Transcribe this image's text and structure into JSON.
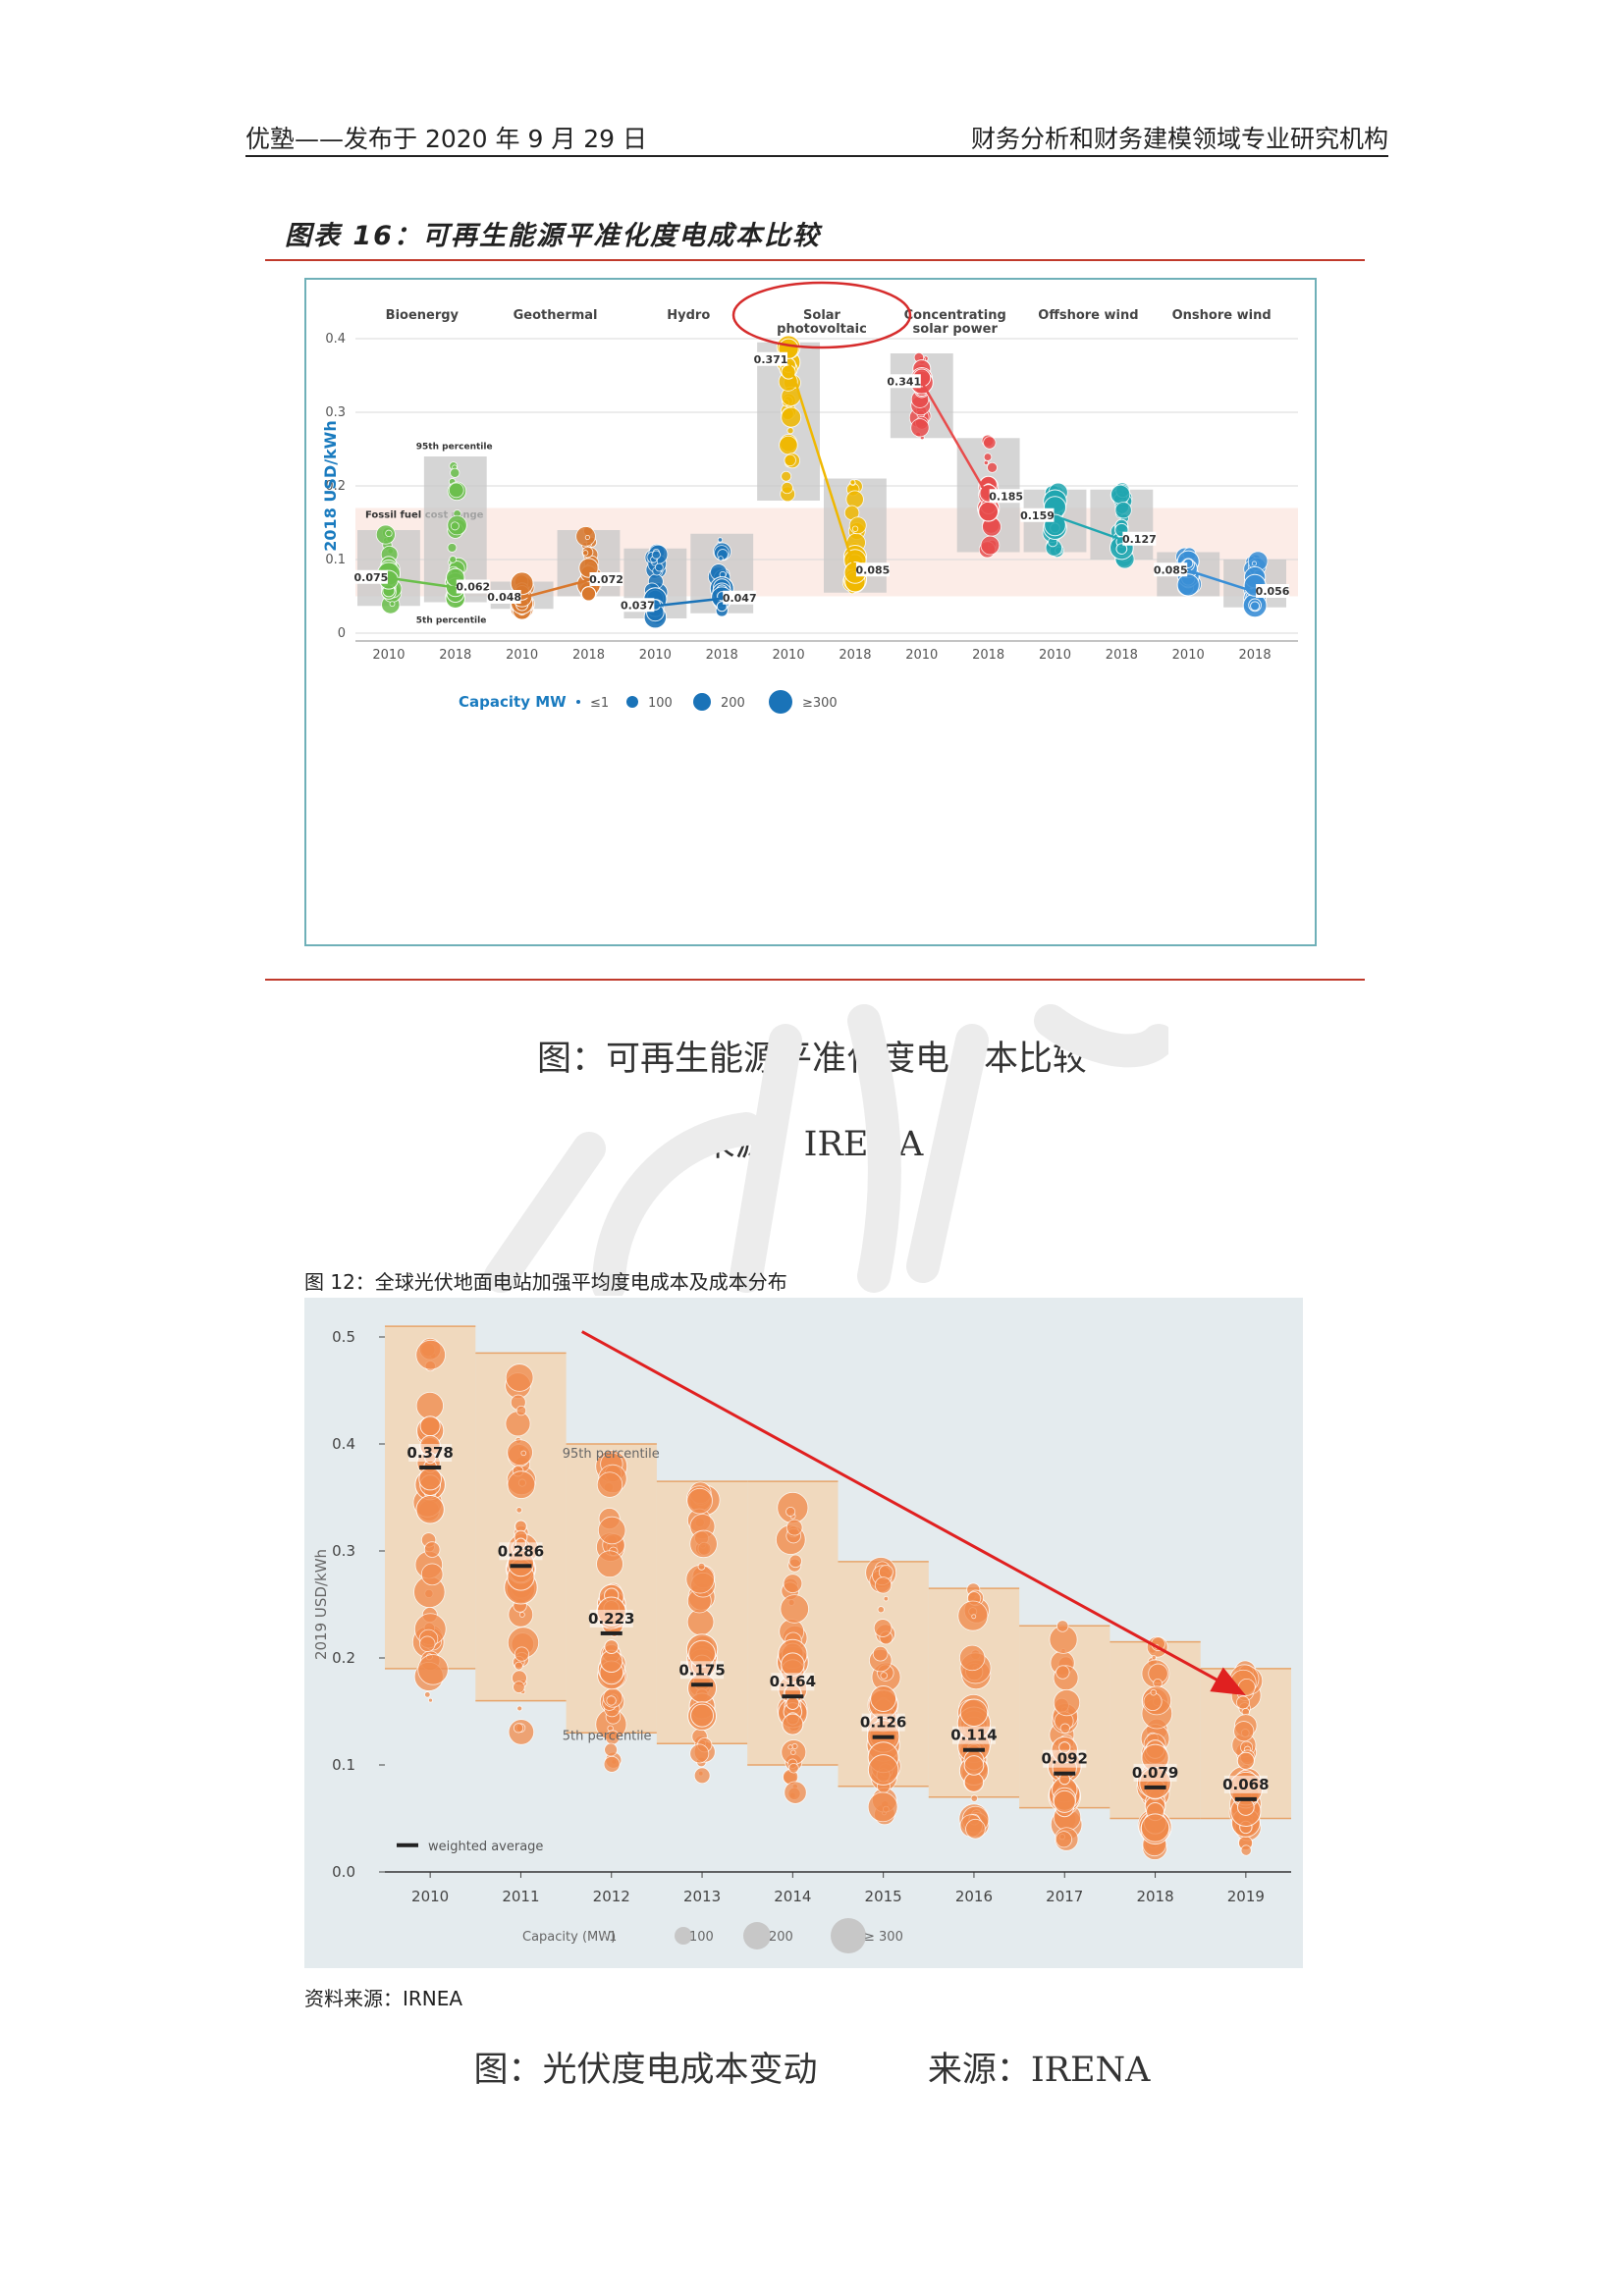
{
  "header": {
    "left": "优塾——发布于 2020 年 9 月 29 日",
    "right": "财务分析和财务建模领域专业研究机构"
  },
  "figure16": {
    "title": "图表 16：可再生能源平准化度电成本比较",
    "caption": "图：可再生能源平准化度电成本比较",
    "source": "来源：IRENA",
    "chart_data": {
      "type": "scatter",
      "ylabel": "2018 USD/kWh",
      "ylim": [
        0,
        0.4
      ],
      "yticks": [
        "0",
        "0.1",
        "0.2",
        "0.3",
        "0.4"
      ],
      "years": [
        "2010",
        "2018"
      ],
      "fossil_label": "Fossil fuel cost range",
      "fossil_range": [
        0.05,
        0.17
      ],
      "p95_label": "95th percentile",
      "p5_label": "5th percentile",
      "legend_title": "Capacity MW",
      "legend_items": [
        "≤1",
        "100",
        "200",
        "≥300"
      ],
      "series": [
        {
          "name": "Bioenergy",
          "color": "#6abf4b",
          "band2010": [
            0.037,
            0.14
          ],
          "band2018": [
            0.042,
            0.24
          ],
          "values": [
            0.075,
            0.062
          ],
          "labels": [
            "0.075",
            "0.062"
          ]
        },
        {
          "name": "Geothermal",
          "color": "#d9782d",
          "band2010": [
            0.033,
            0.07
          ],
          "band2018": [
            0.05,
            0.14
          ],
          "values": [
            0.048,
            0.072
          ],
          "labels": [
            "0.048",
            "0.072"
          ]
        },
        {
          "name": "Hydro",
          "color": "#1a73b8",
          "band2010": [
            0.02,
            0.115
          ],
          "band2018": [
            0.027,
            0.135
          ],
          "values": [
            0.037,
            0.047
          ],
          "labels": [
            "0.037",
            "0.047"
          ]
        },
        {
          "name": "Solar photovoltaic",
          "color": "#f0b800",
          "band2010": [
            0.18,
            0.395
          ],
          "band2018": [
            0.055,
            0.21
          ],
          "values": [
            0.371,
            0.085
          ],
          "labels": [
            "0.371",
            "0.085"
          ]
        },
        {
          "name": "Concentrating solar power",
          "color": "#e84c4c",
          "band2010": [
            0.265,
            0.38
          ],
          "band2018": [
            0.11,
            0.265
          ],
          "values": [
            0.341,
            0.185
          ],
          "labels": [
            "0.341",
            "0.185"
          ]
        },
        {
          "name": "Offshore wind",
          "color": "#20a6b0",
          "band2010": [
            0.11,
            0.195
          ],
          "band2018": [
            0.1,
            0.195
          ],
          "values": [
            0.159,
            0.127
          ],
          "labels": [
            "0.159",
            "0.127"
          ]
        },
        {
          "name": "Onshore wind",
          "color": "#3a8fd6",
          "band2010": [
            0.05,
            0.11
          ],
          "band2018": [
            0.035,
            0.1
          ],
          "values": [
            0.085,
            0.056
          ],
          "labels": [
            "0.085",
            "0.056"
          ]
        }
      ],
      "group_labels": [
        [
          "Bioenergy"
        ],
        [
          "Geothermal"
        ],
        [
          "Hydro"
        ],
        [
          "Solar",
          "photovoltaic"
        ],
        [
          "Concentrating",
          "solar power"
        ],
        [
          "Offshore wind"
        ],
        [
          "Onshore wind"
        ]
      ]
    }
  },
  "figure12": {
    "title": "图 12：全球光伏地面电站加强平均度电成本及成本分布",
    "source": "资料来源：IRNEA",
    "caption_left": "图：光伏度电成本变动",
    "caption_right": "来源：IRENA",
    "chart_data": {
      "type": "scatter",
      "ylabel": "2019 USD/kWh",
      "ylim": [
        0,
        0.5
      ],
      "yticks": [
        "0.0",
        "0.1",
        "0.2",
        "0.3",
        "0.4",
        "0.5"
      ],
      "categories": [
        "2010",
        "2011",
        "2012",
        "2013",
        "2014",
        "2015",
        "2016",
        "2017",
        "2018",
        "2019"
      ],
      "weighted_average": [
        0.378,
        0.286,
        0.223,
        0.175,
        0.164,
        0.126,
        0.114,
        0.092,
        0.079,
        0.068
      ],
      "labels": [
        "0.378",
        "0.286",
        "0.223",
        "0.175",
        "0.164",
        "0.126",
        "0.114",
        "0.092",
        "0.079",
        "0.068"
      ],
      "p95": [
        0.51,
        0.485,
        0.4,
        0.365,
        0.365,
        0.29,
        0.265,
        0.23,
        0.215,
        0.19
      ],
      "p5": [
        0.19,
        0.16,
        0.13,
        0.12,
        0.1,
        0.08,
        0.07,
        0.06,
        0.05,
        0.05
      ],
      "p95_label": "95th percentile",
      "p5_label": "5th percentile",
      "legend_weighted": "weighted average",
      "legend_title": "Capacity (MW)",
      "legend_items": [
        "1",
        "100",
        "200",
        "≥ 300"
      ],
      "color": "#f08a4b"
    }
  }
}
